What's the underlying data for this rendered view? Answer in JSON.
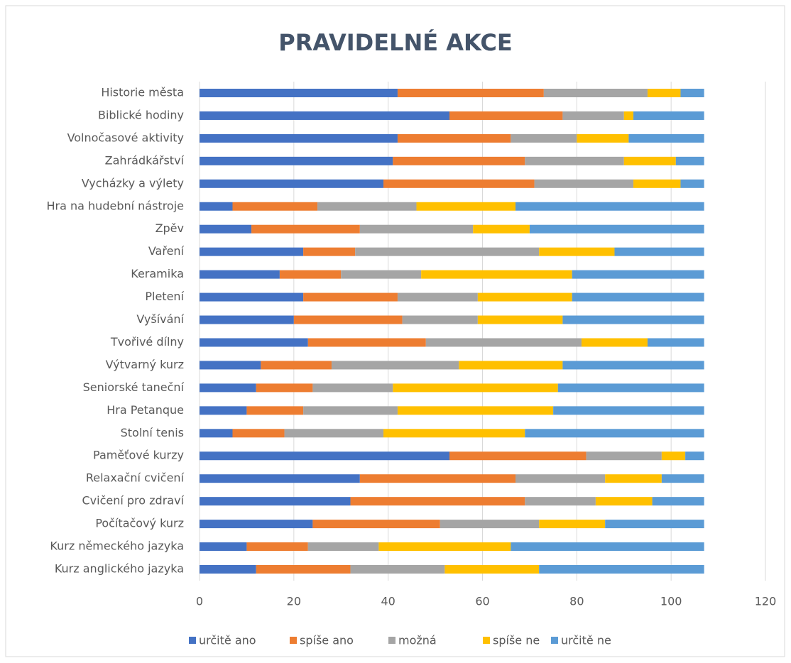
{
  "chart_data": {
    "type": "stacked-barh",
    "title": "PRAVIDELNÉ AKCE",
    "categories": [
      "Historie města",
      "Biblické hodiny",
      "Volnočasové aktivity",
      "Zahrádkářství",
      "Vycházky a výlety",
      "Hra na hudební nástroje",
      "Zpěv",
      "Vaření",
      "Keramika",
      "Pletení",
      "Vyšívání",
      "Tvořivé dílny",
      "Výtvarný kurz",
      "Seniorské taneční",
      "Hra Petanque",
      "Stolní tenis",
      "Paměťové kurzy",
      "Relaxační cvičení",
      "Cvičení pro zdraví",
      "Počítačový kurz",
      "Kurz německého jazyka",
      "Kurz anglického jazyka"
    ],
    "series": [
      {
        "name": "určitě ano",
        "color": "#4472c4",
        "values": [
          42,
          53,
          42,
          41,
          39,
          7,
          11,
          22,
          17,
          22,
          20,
          23,
          13,
          12,
          10,
          7,
          53,
          34,
          32,
          24,
          10,
          12
        ]
      },
      {
        "name": "spíše ano",
        "color": "#ed7d31",
        "values": [
          31,
          24,
          24,
          28,
          32,
          18,
          23,
          11,
          13,
          20,
          23,
          25,
          15,
          12,
          12,
          11,
          29,
          33,
          37,
          27,
          13,
          20
        ]
      },
      {
        "name": "možná",
        "color": "#a5a5a5",
        "values": [
          22,
          13,
          14,
          21,
          21,
          21,
          24,
          39,
          17,
          17,
          16,
          33,
          27,
          17,
          20,
          21,
          16,
          19,
          15,
          21,
          15,
          20
        ]
      },
      {
        "name": "spíše ne",
        "color": "#ffc000",
        "values": [
          7,
          2,
          11,
          11,
          10,
          21,
          12,
          16,
          32,
          20,
          18,
          14,
          22,
          35,
          33,
          30,
          5,
          12,
          12,
          14,
          28,
          20
        ]
      },
      {
        "name": "určitě ne",
        "color": "#5b9bd5",
        "values": [
          5,
          15,
          16,
          6,
          5,
          40,
          37,
          19,
          28,
          28,
          30,
          12,
          30,
          31,
          32,
          38,
          4,
          9,
          11,
          21,
          41,
          35
        ]
      }
    ],
    "xlim": [
      0,
      120
    ],
    "xticks": [
      0,
      20,
      40,
      60,
      80,
      100,
      120
    ],
    "grid": true,
    "legend": "bottom"
  }
}
